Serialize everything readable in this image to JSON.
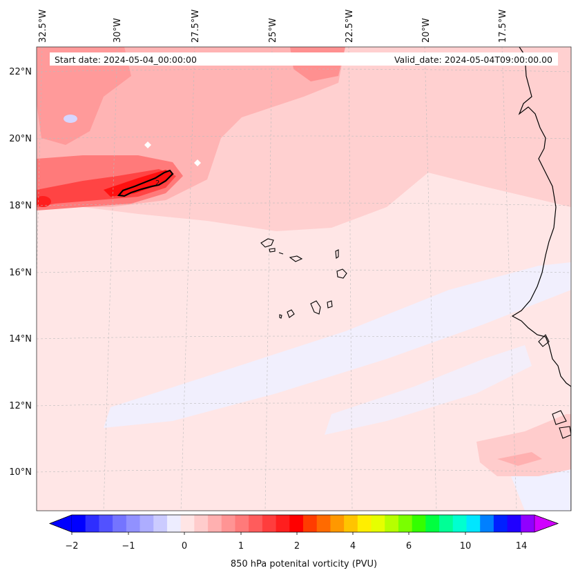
{
  "header": {
    "start_date": "Start date: 2024-05-04_00:00:00",
    "valid_date": "Valid_date: 2024-05-04T09:00:00.00"
  },
  "map": {
    "lon_labels": [
      "32.5°W",
      "30°W",
      "27.5°W",
      "25°W",
      "22.5°W",
      "20°W",
      "17.5°W"
    ],
    "lat_labels": [
      "22°N",
      "20°N",
      "18°N",
      "16°N",
      "14°N",
      "12°N",
      "10°N"
    ],
    "contour_label": "2"
  },
  "colorbar": {
    "ticks": [
      "−2",
      "−1",
      "0",
      "1",
      "2",
      "4",
      "6",
      "10",
      "14"
    ],
    "label": "850 hPa potenital vorticity (PVU)",
    "colors": [
      "#0000ff",
      "#2e2eff",
      "#5252ff",
      "#7474ff",
      "#9191ff",
      "#adadff",
      "#cbcbff",
      "#ededff",
      "#ffe5e5",
      "#ffcccc",
      "#ffb0b0",
      "#ff9494",
      "#ff7a7a",
      "#ff5c5c",
      "#ff3d3d",
      "#ff1e1e",
      "#ff0000",
      "#ff3c00",
      "#ff6a00",
      "#ff9800",
      "#ffc400",
      "#ffee00",
      "#e6ff00",
      "#b6ff00",
      "#7aff00",
      "#34ff00",
      "#00ff40",
      "#00ff96",
      "#00ffd0",
      "#00e6ff",
      "#0080ff",
      "#0020ff",
      "#2000ff",
      "#9000ff"
    ],
    "under_color": "#0000ff",
    "over_color": "#d000ff"
  }
}
